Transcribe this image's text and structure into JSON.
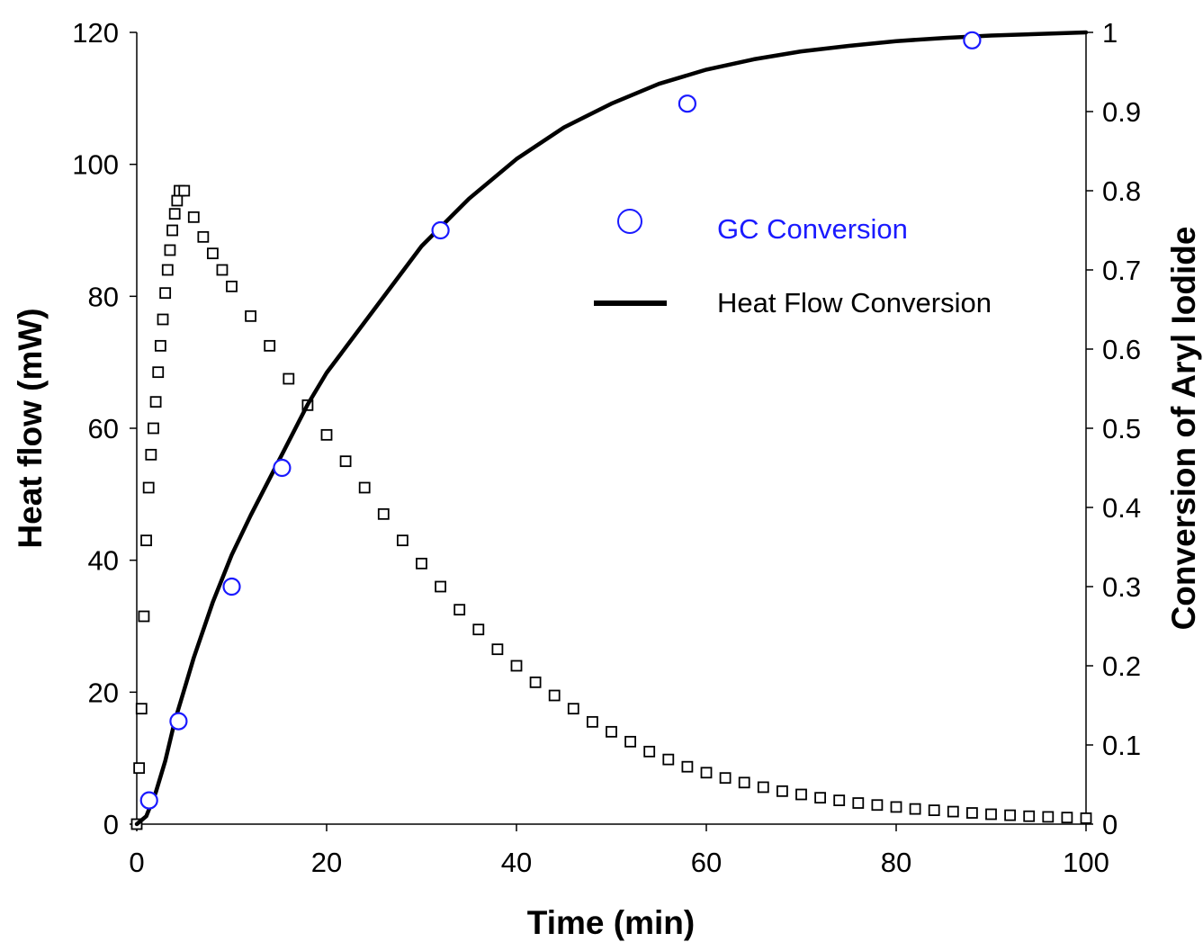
{
  "chart_data": {
    "type": "scatter",
    "title": "",
    "xlabel": "Time (min)",
    "ylabel_left": "Heat flow (mW)",
    "ylabel_right": "Conversion of Aryl Iodide",
    "xlim": [
      0,
      100
    ],
    "ylim_left": [
      0,
      120
    ],
    "ylim_right": [
      0,
      1
    ],
    "x_ticks": [
      "0",
      "20",
      "40",
      "60",
      "80",
      "100"
    ],
    "y_left_ticks": [
      "0",
      "20",
      "40",
      "60",
      "80",
      "100",
      "120"
    ],
    "y_right_ticks": [
      "0",
      "0.1",
      "0.2",
      "0.3",
      "0.4",
      "0.5",
      "0.6",
      "0.7",
      "0.8",
      "0.9",
      "1"
    ],
    "grid": false,
    "legend_position": "upper-right",
    "colors": {
      "gc_conversion": "#1a1aff",
      "heat_flow_conversion": "#000000",
      "heat_flow": "#000000"
    },
    "series": [
      {
        "name": "GC Conversion",
        "axis": "right",
        "marker": "open-circle",
        "x": [
          1.3,
          4.4,
          10.0,
          15.3,
          32.0,
          58.0,
          88.0
        ],
        "y": [
          0.03,
          0.13,
          0.3,
          0.45,
          0.75,
          0.91,
          0.99
        ]
      },
      {
        "name": "Heat Flow Conversion",
        "axis": "right",
        "style": "line",
        "x": [
          0,
          1,
          2,
          3,
          4,
          5,
          6,
          8,
          10,
          12,
          15,
          18,
          20,
          25,
          30,
          35,
          40,
          45,
          50,
          55,
          60,
          65,
          70,
          75,
          80,
          85,
          90,
          95,
          100
        ],
        "y": [
          0,
          0.01,
          0.04,
          0.08,
          0.13,
          0.17,
          0.21,
          0.28,
          0.34,
          0.39,
          0.46,
          0.53,
          0.57,
          0.65,
          0.73,
          0.79,
          0.84,
          0.88,
          0.91,
          0.935,
          0.953,
          0.966,
          0.976,
          0.983,
          0.989,
          0.993,
          0.996,
          0.998,
          1.0
        ]
      },
      {
        "name": "",
        "axis": "left",
        "marker": "open-square",
        "x": [
          0,
          0.25,
          0.5,
          0.75,
          1.0,
          1.25,
          1.5,
          1.75,
          2.0,
          2.25,
          2.5,
          2.75,
          3.0,
          3.25,
          3.5,
          3.75,
          4.0,
          4.25,
          4.5,
          5,
          6,
          7,
          8,
          9,
          10,
          12,
          14,
          16,
          18,
          20,
          22,
          24,
          26,
          28,
          30,
          32,
          34,
          36,
          38,
          40,
          42,
          44,
          46,
          48,
          50,
          52,
          54,
          56,
          58,
          60,
          62,
          64,
          66,
          68,
          70,
          72,
          74,
          76,
          78,
          80,
          82,
          84,
          86,
          88,
          90,
          92,
          94,
          96,
          98,
          100
        ],
        "y": [
          0,
          8.5,
          17.5,
          31.5,
          43,
          51,
          56,
          60,
          64,
          68.5,
          72.5,
          76.5,
          80.5,
          84,
          87,
          90,
          92.5,
          94.5,
          96,
          96,
          92,
          89,
          86.5,
          84,
          81.5,
          77,
          72.5,
          67.5,
          63.5,
          59,
          55,
          51,
          47,
          43,
          39.5,
          36,
          32.5,
          29.5,
          26.5,
          24,
          21.5,
          19.5,
          17.5,
          15.5,
          14,
          12.5,
          11,
          9.8,
          8.7,
          7.8,
          7,
          6.3,
          5.6,
          5,
          4.5,
          4,
          3.6,
          3.2,
          2.9,
          2.6,
          2.3,
          2.1,
          1.9,
          1.7,
          1.5,
          1.35,
          1.2,
          1.1,
          1.0,
          0.9
        ]
      }
    ]
  }
}
